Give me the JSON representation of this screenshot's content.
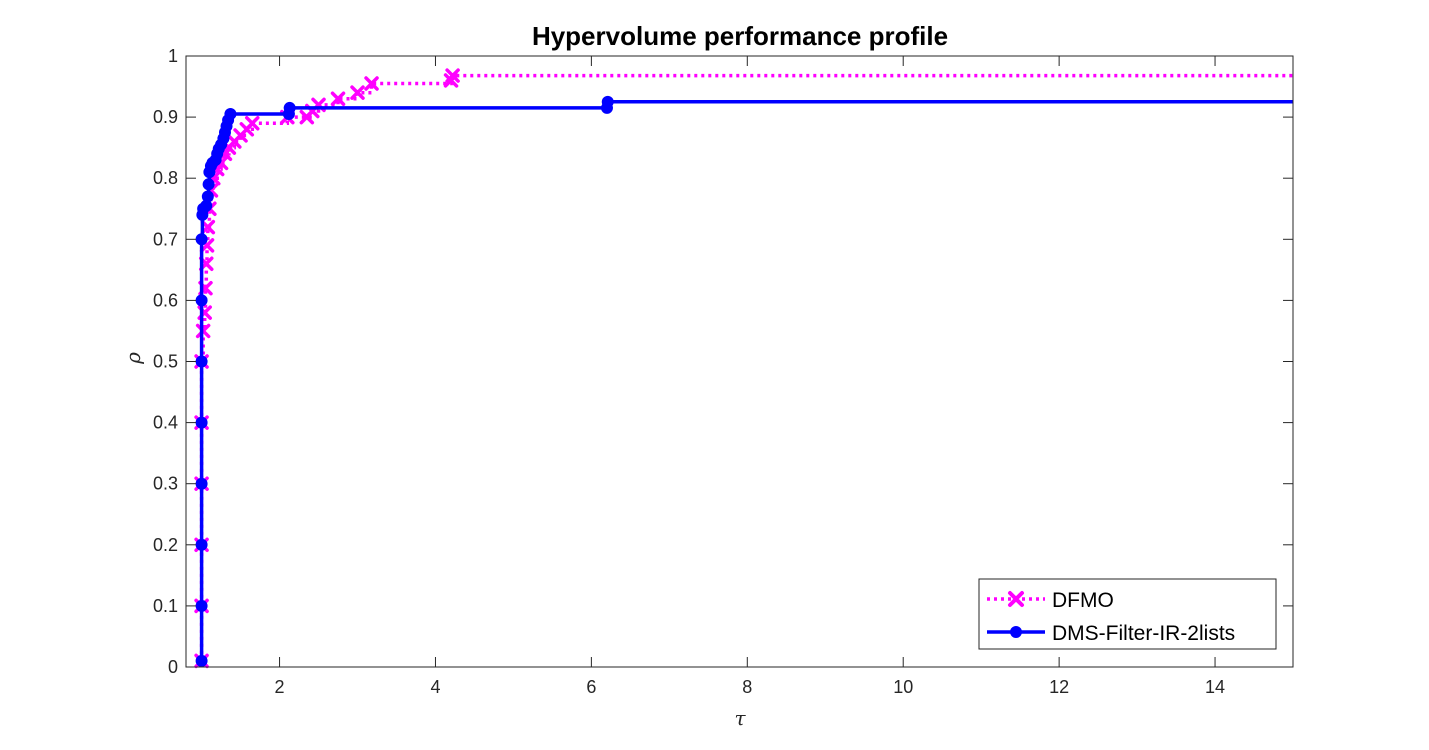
{
  "chart_data": {
    "type": "line",
    "title": "Hypervolume performance profile",
    "xlabel": "τ",
    "ylabel": "ρ",
    "xlim": [
      0.8,
      15
    ],
    "ylim": [
      0,
      1
    ],
    "x_ticks": [
      2,
      4,
      6,
      8,
      10,
      12,
      14
    ],
    "y_ticks": [
      0,
      0.1,
      0.2,
      0.3,
      0.4,
      0.5,
      0.6,
      0.7,
      0.8,
      0.9,
      1
    ],
    "grid": false,
    "legend_position": "bottom-right",
    "series": [
      {
        "name": "DFMO",
        "color": "#ff00ff",
        "line_style": "dotted",
        "marker": "x",
        "points": [
          [
            1.0,
            0.01
          ],
          [
            1.0,
            0.1
          ],
          [
            1.0,
            0.2
          ],
          [
            1.0,
            0.3
          ],
          [
            1.0,
            0.4
          ],
          [
            1.0,
            0.5
          ],
          [
            1.02,
            0.55
          ],
          [
            1.04,
            0.58
          ],
          [
            1.05,
            0.62
          ],
          [
            1.06,
            0.66
          ],
          [
            1.07,
            0.69
          ],
          [
            1.08,
            0.72
          ],
          [
            1.1,
            0.75
          ],
          [
            1.12,
            0.78
          ],
          [
            1.15,
            0.8
          ],
          [
            1.2,
            0.815
          ],
          [
            1.25,
            0.825
          ],
          [
            1.3,
            0.84
          ],
          [
            1.35,
            0.85
          ],
          [
            1.42,
            0.86
          ],
          [
            1.5,
            0.87
          ],
          [
            1.58,
            0.88
          ],
          [
            1.65,
            0.89
          ],
          [
            2.1,
            0.9
          ],
          [
            2.35,
            0.9
          ],
          [
            2.42,
            0.91
          ],
          [
            2.5,
            0.92
          ],
          [
            2.75,
            0.93
          ],
          [
            3.0,
            0.94
          ],
          [
            3.18,
            0.955
          ],
          [
            4.2,
            0.96
          ],
          [
            4.22,
            0.968
          ],
          [
            15.0,
            0.968
          ]
        ]
      },
      {
        "name": "DMS-Filter-IR-2lists",
        "color": "#0000ff",
        "line_style": "solid",
        "marker": "o",
        "points": [
          [
            1.0,
            0.01
          ],
          [
            1.0,
            0.1
          ],
          [
            1.0,
            0.2
          ],
          [
            1.0,
            0.3
          ],
          [
            1.0,
            0.4
          ],
          [
            1.0,
            0.5
          ],
          [
            1.0,
            0.6
          ],
          [
            1.0,
            0.7
          ],
          [
            1.01,
            0.74
          ],
          [
            1.02,
            0.75
          ],
          [
            1.06,
            0.755
          ],
          [
            1.08,
            0.77
          ],
          [
            1.09,
            0.79
          ],
          [
            1.1,
            0.81
          ],
          [
            1.12,
            0.82
          ],
          [
            1.14,
            0.825
          ],
          [
            1.18,
            0.83
          ],
          [
            1.2,
            0.84
          ],
          [
            1.22,
            0.848
          ],
          [
            1.25,
            0.855
          ],
          [
            1.28,
            0.865
          ],
          [
            1.3,
            0.875
          ],
          [
            1.32,
            0.885
          ],
          [
            1.34,
            0.895
          ],
          [
            1.37,
            0.905
          ],
          [
            2.12,
            0.905
          ],
          [
            2.13,
            0.915
          ],
          [
            6.2,
            0.915
          ],
          [
            6.21,
            0.925
          ],
          [
            15.0,
            0.925
          ]
        ]
      }
    ]
  }
}
